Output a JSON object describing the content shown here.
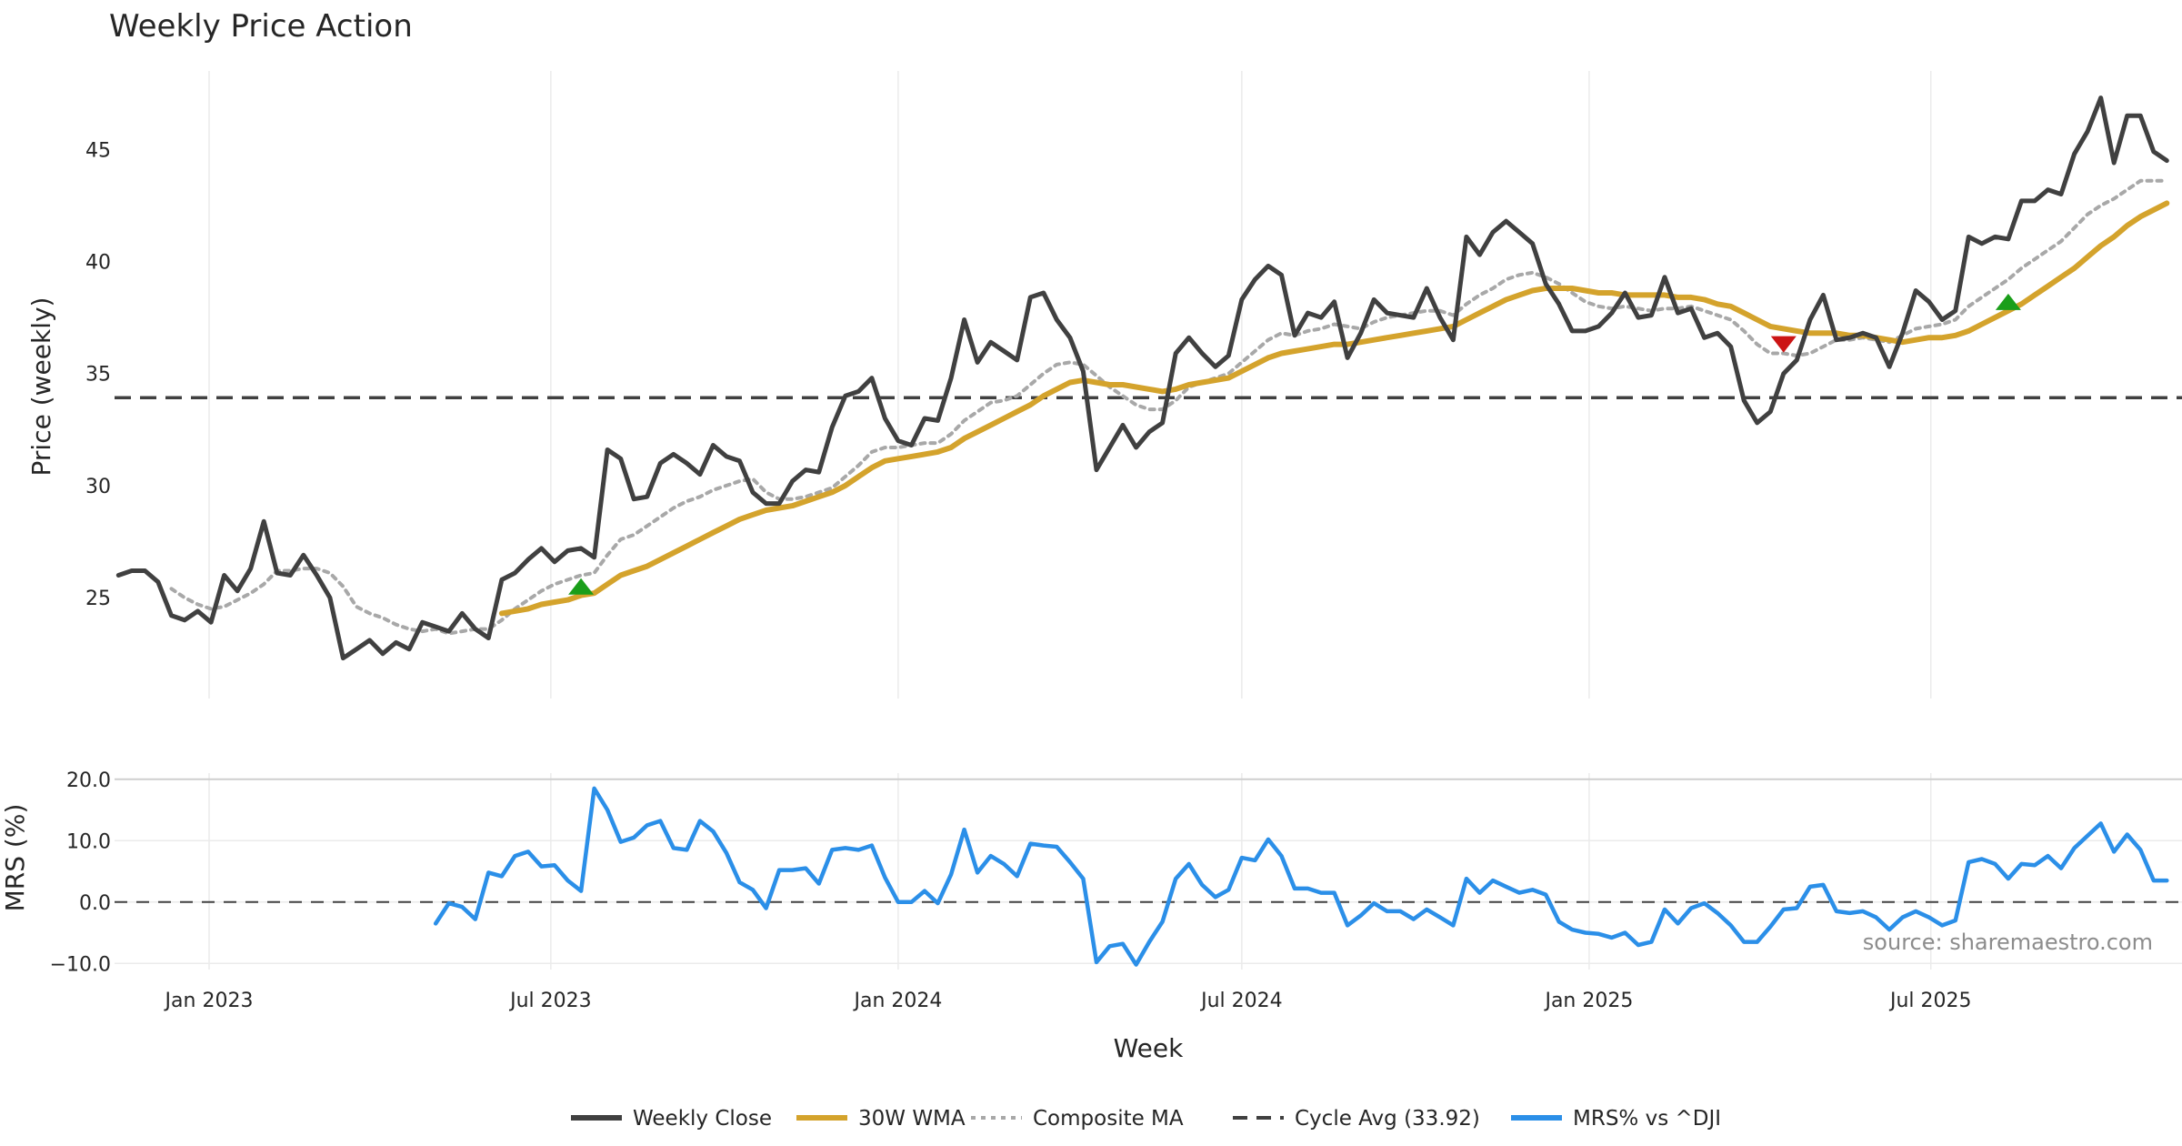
{
  "chart_data": [
    {
      "type": "line",
      "title": "Weekly Price Action",
      "ylabel": "Price (weekly)",
      "ylim": [
        20.5,
        48.5
      ],
      "yticks": [
        25,
        30,
        35,
        40,
        45
      ],
      "grid": "vertical",
      "x_start": "2022-11-14",
      "x_step_days": 7,
      "series": [
        {
          "name": "Weekly Close",
          "color": "#404040",
          "values": [
            26.0,
            26.2,
            26.2,
            25.7,
            24.2,
            24.0,
            24.4,
            23.9,
            26.0,
            25.3,
            26.3,
            28.4,
            26.1,
            26.0,
            26.9,
            26.0,
            25.0,
            22.3,
            22.7,
            23.1,
            22.5,
            23.0,
            22.7,
            23.9,
            23.7,
            23.5,
            24.3,
            23.6,
            23.2,
            25.8,
            26.1,
            26.7,
            27.2,
            26.6,
            27.1,
            27.2,
            26.8,
            31.6,
            31.2,
            29.4,
            29.5,
            31.0,
            31.4,
            31.0,
            30.5,
            31.8,
            31.3,
            31.1,
            29.7,
            29.2,
            29.2,
            30.2,
            30.7,
            30.6,
            32.6,
            34.0,
            34.2,
            34.8,
            33.0,
            32.0,
            31.8,
            33.0,
            32.9,
            34.8,
            37.4,
            35.5,
            36.4,
            36.0,
            35.6,
            38.4,
            38.6,
            37.4,
            36.6,
            35.1,
            30.7,
            31.7,
            32.7,
            31.7,
            32.4,
            32.8,
            35.9,
            36.6,
            35.9,
            35.3,
            35.8,
            38.3,
            39.2,
            39.8,
            39.4,
            36.7,
            37.7,
            37.5,
            38.2,
            35.7,
            36.8,
            38.3,
            37.7,
            37.6,
            37.5,
            38.8,
            37.5,
            36.5,
            41.1,
            40.3,
            41.3,
            41.8,
            41.3,
            40.8,
            39.0,
            38.1,
            36.9,
            36.9,
            37.1,
            37.7,
            38.6,
            37.5,
            37.6,
            39.3,
            37.7,
            37.9,
            36.6,
            36.8,
            36.2,
            33.8,
            32.8,
            33.3,
            35.0,
            35.6,
            37.4,
            38.5,
            36.5,
            36.6,
            36.8,
            36.6,
            35.3,
            36.8,
            38.7,
            38.2,
            37.4,
            37.8,
            41.1,
            40.8,
            41.1,
            41.0,
            42.7,
            42.7,
            43.2,
            43.0,
            44.8,
            45.8,
            47.3,
            44.4,
            46.5,
            46.5,
            44.9,
            44.5
          ]
        },
        {
          "name": "30W WMA",
          "color": "#d4a32c",
          "values": [
            null,
            null,
            null,
            null,
            null,
            null,
            null,
            null,
            null,
            null,
            null,
            null,
            null,
            null,
            null,
            null,
            null,
            null,
            null,
            null,
            null,
            null,
            null,
            null,
            null,
            null,
            null,
            null,
            null,
            24.3,
            24.4,
            24.5,
            24.7,
            24.8,
            24.9,
            25.1,
            25.2,
            25.6,
            26.0,
            26.2,
            26.4,
            26.7,
            27.0,
            27.3,
            27.6,
            27.9,
            28.2,
            28.5,
            28.7,
            28.9,
            29.0,
            29.1,
            29.3,
            29.5,
            29.7,
            30.0,
            30.4,
            30.8,
            31.1,
            31.2,
            31.3,
            31.4,
            31.5,
            31.7,
            32.1,
            32.4,
            32.7,
            33.0,
            33.3,
            33.6,
            34.0,
            34.3,
            34.6,
            34.7,
            34.6,
            34.5,
            34.5,
            34.4,
            34.3,
            34.2,
            34.3,
            34.5,
            34.6,
            34.7,
            34.8,
            35.1,
            35.4,
            35.7,
            35.9,
            36.0,
            36.1,
            36.2,
            36.3,
            36.3,
            36.4,
            36.5,
            36.6,
            36.7,
            36.8,
            36.9,
            37.0,
            37.1,
            37.4,
            37.7,
            38.0,
            38.3,
            38.5,
            38.7,
            38.8,
            38.8,
            38.8,
            38.7,
            38.6,
            38.6,
            38.5,
            38.5,
            38.5,
            38.5,
            38.4,
            38.4,
            38.3,
            38.1,
            38.0,
            37.7,
            37.4,
            37.1,
            37.0,
            36.9,
            36.8,
            36.8,
            36.8,
            36.7,
            36.7,
            36.6,
            36.5,
            36.4,
            36.5,
            36.6,
            36.6,
            36.7,
            36.9,
            37.2,
            37.5,
            37.8,
            38.1,
            38.5,
            38.9,
            39.3,
            39.7,
            40.2,
            40.7,
            41.1,
            41.6,
            42.0,
            42.3,
            42.6
          ]
        },
        {
          "name": "Composite MA",
          "color": "#a8a8a8",
          "values": [
            null,
            null,
            null,
            null,
            25.4,
            25.0,
            24.7,
            24.5,
            24.6,
            24.9,
            25.2,
            25.6,
            26.2,
            26.2,
            26.3,
            26.3,
            26.1,
            25.5,
            24.6,
            24.3,
            24.1,
            23.8,
            23.6,
            23.5,
            23.6,
            23.4,
            23.5,
            23.6,
            23.6,
            24.0,
            24.5,
            24.9,
            25.3,
            25.6,
            25.8,
            26.0,
            26.1,
            26.9,
            27.6,
            27.8,
            28.2,
            28.6,
            29.0,
            29.3,
            29.5,
            29.8,
            30.0,
            30.2,
            30.3,
            29.7,
            29.4,
            29.4,
            29.5,
            29.7,
            29.9,
            30.4,
            30.9,
            31.5,
            31.7,
            31.7,
            31.8,
            31.9,
            31.9,
            32.3,
            32.9,
            33.3,
            33.7,
            33.8,
            34.0,
            34.5,
            35.0,
            35.4,
            35.5,
            35.4,
            34.9,
            34.4,
            34.0,
            33.6,
            33.4,
            33.4,
            33.8,
            34.4,
            34.6,
            34.8,
            35.0,
            35.5,
            36.0,
            36.5,
            36.8,
            36.7,
            36.9,
            37.0,
            37.2,
            37.1,
            37.0,
            37.3,
            37.5,
            37.6,
            37.7,
            37.8,
            37.8,
            37.6,
            38.1,
            38.5,
            38.8,
            39.2,
            39.4,
            39.5,
            39.3,
            39.0,
            38.6,
            38.2,
            38.0,
            37.9,
            38.0,
            37.9,
            37.8,
            37.9,
            37.9,
            38.0,
            37.8,
            37.6,
            37.4,
            36.9,
            36.3,
            35.9,
            35.9,
            35.8,
            35.9,
            36.2,
            36.5,
            36.5,
            36.6,
            36.5,
            36.4,
            36.7,
            37.0,
            37.1,
            37.2,
            37.4,
            38.0,
            38.4,
            38.8,
            39.2,
            39.7,
            40.1,
            40.5,
            40.9,
            41.5,
            42.1,
            42.5,
            42.8,
            43.2,
            43.6,
            43.6,
            43.6
          ]
        },
        {
          "name": "Cycle Avg (33.92)",
          "color": "#404040",
          "constant": 33.92
        }
      ],
      "signals": [
        {
          "type": "buy",
          "week_index": 35,
          "y": 25.5
        },
        {
          "type": "sell",
          "week_index": 126,
          "y": 36.3
        },
        {
          "type": "buy",
          "week_index": 143,
          "y": 38.2
        }
      ]
    },
    {
      "type": "line",
      "ylabel": "MRS (%)",
      "ylim": [
        -11,
        21
      ],
      "yticks": [
        -10,
        0,
        10,
        20
      ],
      "ytick_labels": [
        "−10.0",
        "0.0",
        "10.0",
        "20.0"
      ],
      "xlabel": "Week",
      "xticks": [
        {
          "label": "Jan 2023",
          "date": "2023-01-01"
        },
        {
          "label": "Jul 2023",
          "date": "2023-07-01"
        },
        {
          "label": "Jan 2024",
          "date": "2024-01-01"
        },
        {
          "label": "Jul 2024",
          "date": "2024-07-01"
        },
        {
          "label": "Jan 2025",
          "date": "2025-01-01"
        },
        {
          "label": "Jul 2025",
          "date": "2025-07-01"
        }
      ],
      "x_start": "2022-11-14",
      "x_step_days": 7,
      "series": [
        {
          "name": "MRS% vs ^DJI",
          "color": "#2b8fe8",
          "values": [
            null,
            null,
            null,
            null,
            null,
            null,
            null,
            null,
            null,
            null,
            null,
            null,
            null,
            null,
            null,
            null,
            null,
            null,
            null,
            null,
            null,
            null,
            null,
            null,
            -3.5,
            -0.2,
            -0.8,
            -2.8,
            4.8,
            4.2,
            7.5,
            8.2,
            5.8,
            6.0,
            3.5,
            1.8,
            18.5,
            15.0,
            9.8,
            10.5,
            12.5,
            13.2,
            8.8,
            8.5,
            13.2,
            11.5,
            8.0,
            3.2,
            2.0,
            -1.0,
            5.2,
            5.2,
            5.5,
            3.0,
            8.5,
            8.8,
            8.5,
            9.2,
            4.0,
            0.0,
            0.0,
            1.8,
            -0.2,
            4.5,
            11.8,
            4.8,
            7.5,
            6.2,
            4.2,
            9.5,
            9.2,
            9.0,
            6.5,
            3.8,
            -9.8,
            -7.2,
            -6.8,
            -10.2,
            -6.5,
            -3.2,
            3.8,
            6.2,
            2.8,
            0.8,
            2.0,
            7.2,
            6.8,
            10.2,
            7.5,
            2.2,
            2.2,
            1.5,
            1.5,
            -3.8,
            -2.2,
            -0.2,
            -1.5,
            -1.5,
            -2.8,
            -1.2,
            -2.5,
            -3.8,
            3.8,
            1.5,
            3.5,
            2.5,
            1.5,
            2.0,
            1.2,
            -3.2,
            -4.5,
            -5.0,
            -5.2,
            -5.8,
            -5.0,
            -7.0,
            -6.5,
            -1.2,
            -3.5,
            -1.0,
            -0.2,
            -1.8,
            -3.8,
            -6.5,
            -6.5,
            -4.0,
            -1.2,
            -1.0,
            2.5,
            2.8,
            -1.5,
            -1.8,
            -1.5,
            -2.5,
            -4.5,
            -2.5,
            -1.5,
            -2.5,
            -3.8,
            -3.0,
            6.5,
            7.0,
            6.2,
            3.8,
            6.2,
            6.0,
            7.5,
            5.5,
            8.8,
            10.8,
            12.8,
            8.2,
            11.0,
            8.5,
            3.5,
            3.5
          ]
        },
        {
          "name": "zero",
          "color": "#404040",
          "constant": 0
        }
      ]
    }
  ],
  "legend": {
    "placement": "bottom-center",
    "items": [
      {
        "label": "Weekly Close",
        "style": "solid",
        "color": "#404040"
      },
      {
        "label": "30W WMA",
        "style": "solid",
        "color": "#d4a32c"
      },
      {
        "label": "Composite MA",
        "style": "dotted",
        "color": "#a8a8a8"
      },
      {
        "label": "Cycle Avg (33.92)",
        "style": "dashed",
        "color": "#404040"
      },
      {
        "label": "MRS% vs ^DJI",
        "style": "solid",
        "color": "#2b8fe8"
      }
    ]
  },
  "source_note": "source: sharemaestro.com",
  "colors": {
    "buy": "#1a9e1a",
    "sell": "#cc1414",
    "grid": "#ebebeb"
  }
}
